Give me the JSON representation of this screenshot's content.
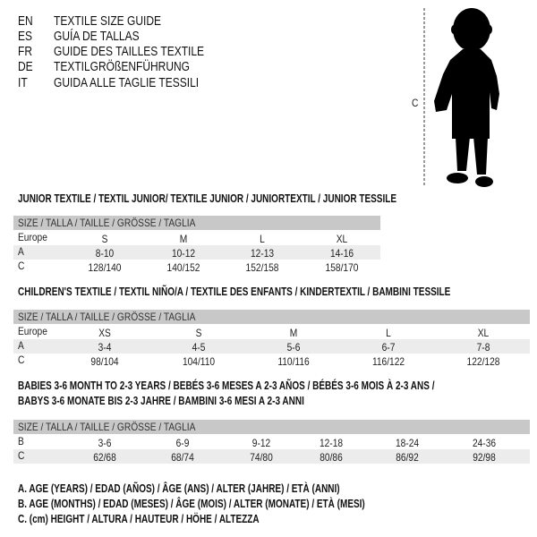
{
  "languages": [
    {
      "code": "EN",
      "title": "TEXTILE SIZE GUIDE"
    },
    {
      "code": "ES",
      "title": "GUÍA DE TALLAS"
    },
    {
      "code": "FR",
      "title": "GUIDE DES TAILLES TEXTILE"
    },
    {
      "code": "DE",
      "title": "TEXTILGRÖßENFÜHRUNG"
    },
    {
      "code": "IT",
      "title": "GUIDA ALLE TAGLIE TESSILI"
    }
  ],
  "figure": {
    "label": "C",
    "icon": "child-silhouette"
  },
  "size_header": "SIZE / TALLA / TAILLE / GRÖSSE / TAGLIA",
  "junior": {
    "title": "JUNIOR TEXTILE / TEXTIL JUNIOR/ TEXTILE JUNIOR / JUNIORTEXTIL / JUNIOR TESSILE",
    "rows": [
      {
        "label": "Europe",
        "values": [
          "S",
          "M",
          "L",
          "XL"
        ]
      },
      {
        "label": "A",
        "values": [
          "8-10",
          "10-12",
          "12-13",
          "14-16"
        ]
      },
      {
        "label": "C",
        "values": [
          "128/140",
          "140/152",
          "152/158",
          "158/170"
        ]
      }
    ]
  },
  "children": {
    "title": "CHILDREN'S TEXTILE / TEXTIL NIÑO/A / TEXTILE DES ENFANTS / KINDERTEXTIL / BAMBINI TESSILE",
    "rows": [
      {
        "label": "Europe",
        "values": [
          "XS",
          "S",
          "M",
          "L",
          "XL"
        ]
      },
      {
        "label": "A",
        "values": [
          "3-4",
          "4-5",
          "5-6",
          "6-7",
          "7-8"
        ]
      },
      {
        "label": "C",
        "values": [
          "98/104",
          "104/110",
          "110/116",
          "116/122",
          "122/128"
        ]
      }
    ]
  },
  "babies": {
    "title_line1": "BABIES 3-6 MONTH TO 2-3 YEARS / BEBÉS 3-6 MESES A 2-3 AÑOS / BÉBÉS 3-6 MOIS À 2-3 ANS /",
    "title_line2": "BABYS 3-6 MONATE BIS 2-3 JAHRE / BAMBINI 3-6 MESI A 2-3 ANNI",
    "rows": [
      {
        "label": "B",
        "values": [
          "3-6",
          "6-9",
          "9-12",
          "12-18",
          "18-24",
          "24-36"
        ]
      },
      {
        "label": "C",
        "values": [
          "62/68",
          "68/74",
          "74/80",
          "80/86",
          "86/92",
          "92/98"
        ]
      }
    ]
  },
  "legend": [
    "A. AGE (YEARS) / EDAD (AÑOS) / ÂGE (ANS) / ALTER (JAHRE) / ETÀ (ANNI)",
    "B. AGE (MONTHS) / EDAD (MESES) / ÂGE (MOIS) / ALTER (MONATE) / ETÀ (MESI)",
    "C. (cm) HEIGHT / ALTURA / HAUTEUR / HÖHE / ALTEZZA"
  ]
}
